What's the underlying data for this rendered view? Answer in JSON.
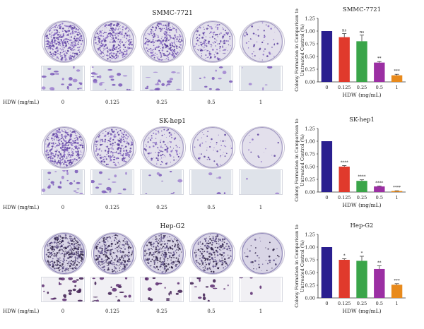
{
  "panels": [
    {
      "title": "SMMC-7721",
      "hdw_label": "HDW (mg/mL)",
      "concentrations": [
        "0",
        "0.125",
        "0.25",
        "0.5",
        "1"
      ],
      "plate_density": [
        1.0,
        0.85,
        0.75,
        0.4,
        0.12
      ],
      "plate_style": "blue",
      "micro_style": "light"
    },
    {
      "title": "SK-hep1",
      "hdw_label": "HDW (mg/mL)",
      "concentrations": [
        "0",
        "0.125",
        "0.25",
        "0.5",
        "1"
      ],
      "plate_density": [
        1.0,
        0.6,
        0.3,
        0.12,
        0.02
      ],
      "plate_style": "blue",
      "micro_style": "light"
    },
    {
      "title": "Hep-G2",
      "hdw_label": "HDW (mg/mL)",
      "concentrations": [
        "0",
        "0.125",
        "0.25",
        "0.5",
        "1"
      ],
      "plate_density": [
        1.0,
        0.75,
        0.7,
        0.55,
        0.1
      ],
      "plate_style": "violet",
      "micro_style": "dark"
    }
  ],
  "chart_data": [
    {
      "type": "bar",
      "title": "SMMC-7721",
      "categories": [
        "0",
        "0.125",
        "0.25",
        "0.5",
        "1"
      ],
      "values": [
        1.0,
        0.88,
        0.8,
        0.38,
        0.13
      ],
      "errors": [
        0.0,
        0.07,
        0.12,
        0.02,
        0.02
      ],
      "annotations": [
        "",
        "ns",
        "ns",
        "**",
        "***"
      ],
      "colors": [
        "#2a1f8f",
        "#e03a2c",
        "#3aa549",
        "#9b2fa3",
        "#e88a1c"
      ],
      "xlabel": "HDW (mg/mL)",
      "ylabel": "Colony Formation in Comparison to Untreated Control (%)",
      "ylim": [
        0,
        1.25
      ],
      "yticks": [
        "0.00",
        "0.25",
        "0.50",
        "0.75",
        "1.00",
        "1.25"
      ]
    },
    {
      "type": "bar",
      "title": "SK-hep1",
      "categories": [
        "0",
        "0.125",
        "0.25",
        "0.5",
        "1"
      ],
      "values": [
        1.0,
        0.5,
        0.22,
        0.11,
        0.02
      ],
      "errors": [
        0.0,
        0.02,
        0.02,
        0.01,
        0.005
      ],
      "annotations": [
        "",
        "****",
        "****",
        "****",
        "****"
      ],
      "colors": [
        "#2a1f8f",
        "#e03a2c",
        "#3aa549",
        "#9b2fa3",
        "#e88a1c"
      ],
      "xlabel": "HDW (mg/mL)",
      "ylabel": "Colony Formation in Comparison to Untreated Control (%)",
      "ylim": [
        0,
        1.25
      ],
      "yticks": [
        "0.00",
        "0.25",
        "0.50",
        "0.75",
        "1.00",
        "1.25"
      ]
    },
    {
      "type": "bar",
      "title": "Hep-G2",
      "categories": [
        "0",
        "0.125",
        "0.25",
        "0.5",
        "1"
      ],
      "values": [
        1.0,
        0.75,
        0.73,
        0.57,
        0.26
      ],
      "errors": [
        0.0,
        0.02,
        0.09,
        0.06,
        0.02
      ],
      "annotations": [
        "",
        "*",
        "*",
        "**",
        "***"
      ],
      "colors": [
        "#2a1f8f",
        "#e03a2c",
        "#3aa549",
        "#9b2fa3",
        "#e88a1c"
      ],
      "xlabel": "HDW (mg/mL)",
      "ylabel": "Colony Formation in Comparison to Untreated Control (%)",
      "ylim": [
        0,
        1.25
      ],
      "yticks": [
        "0.00",
        "0.25",
        "0.50",
        "0.75",
        "1.00",
        "1.25"
      ]
    }
  ]
}
